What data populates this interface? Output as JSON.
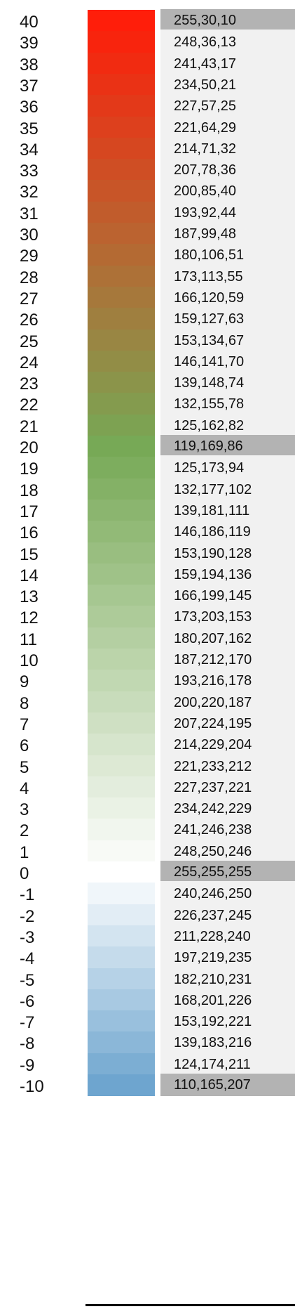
{
  "chart_data": {
    "type": "table",
    "rows": [
      {
        "label": "40",
        "rgb": "255,30,10",
        "key": true
      },
      {
        "label": "39",
        "rgb": "248,36,13",
        "key": false
      },
      {
        "label": "38",
        "rgb": "241,43,17",
        "key": false
      },
      {
        "label": "37",
        "rgb": "234,50,21",
        "key": false
      },
      {
        "label": "36",
        "rgb": "227,57,25",
        "key": false
      },
      {
        "label": "35",
        "rgb": "221,64,29",
        "key": false
      },
      {
        "label": "34",
        "rgb": "214,71,32",
        "key": false
      },
      {
        "label": "33",
        "rgb": "207,78,36",
        "key": false
      },
      {
        "label": "32",
        "rgb": "200,85,40",
        "key": false
      },
      {
        "label": "31",
        "rgb": "193,92,44",
        "key": false
      },
      {
        "label": "30",
        "rgb": "187,99,48",
        "key": false
      },
      {
        "label": "29",
        "rgb": "180,106,51",
        "key": false
      },
      {
        "label": "28",
        "rgb": "173,113,55",
        "key": false
      },
      {
        "label": "27",
        "rgb": "166,120,59",
        "key": false
      },
      {
        "label": "26",
        "rgb": "159,127,63",
        "key": false
      },
      {
        "label": "25",
        "rgb": "153,134,67",
        "key": false
      },
      {
        "label": "24",
        "rgb": "146,141,70",
        "key": false
      },
      {
        "label": "23",
        "rgb": "139,148,74",
        "key": false
      },
      {
        "label": "22",
        "rgb": "132,155,78",
        "key": false
      },
      {
        "label": "21",
        "rgb": "125,162,82",
        "key": false
      },
      {
        "label": "20",
        "rgb": "119,169,86",
        "key": true
      },
      {
        "label": "19",
        "rgb": "125,173,94",
        "key": false
      },
      {
        "label": "18",
        "rgb": "132,177,102",
        "key": false
      },
      {
        "label": "17",
        "rgb": "139,181,111",
        "key": false
      },
      {
        "label": "16",
        "rgb": "146,186,119",
        "key": false
      },
      {
        "label": "15",
        "rgb": "153,190,128",
        "key": false
      },
      {
        "label": "14",
        "rgb": "159,194,136",
        "key": false
      },
      {
        "label": "13",
        "rgb": "166,199,145",
        "key": false
      },
      {
        "label": "12",
        "rgb": "173,203,153",
        "key": false
      },
      {
        "label": "11",
        "rgb": "180,207,162",
        "key": false
      },
      {
        "label": "10",
        "rgb": "187,212,170",
        "key": false
      },
      {
        "label": "9",
        "rgb": "193,216,178",
        "key": false
      },
      {
        "label": "8",
        "rgb": "200,220,187",
        "key": false
      },
      {
        "label": "7",
        "rgb": "207,224,195",
        "key": false
      },
      {
        "label": "6",
        "rgb": "214,229,204",
        "key": false
      },
      {
        "label": "5",
        "rgb": "221,233,212",
        "key": false
      },
      {
        "label": "4",
        "rgb": "227,237,221",
        "key": false
      },
      {
        "label": "3",
        "rgb": "234,242,229",
        "key": false
      },
      {
        "label": "2",
        "rgb": "241,246,238",
        "key": false
      },
      {
        "label": "1",
        "rgb": "248,250,246",
        "key": false
      },
      {
        "label": "0",
        "rgb": "255,255,255",
        "key": true
      },
      {
        "label": "-1",
        "rgb": "240,246,250",
        "key": false
      },
      {
        "label": "-2",
        "rgb": "226,237,245",
        "key": false
      },
      {
        "label": "-3",
        "rgb": "211,228,240",
        "key": false
      },
      {
        "label": "-4",
        "rgb": "197,219,235",
        "key": false
      },
      {
        "label": "-5",
        "rgb": "182,210,231",
        "key": false
      },
      {
        "label": "-6",
        "rgb": "168,201,226",
        "key": false
      },
      {
        "label": "-7",
        "rgb": "153,192,221",
        "key": false
      },
      {
        "label": "-8",
        "rgb": "139,183,216",
        "key": false
      },
      {
        "label": "-9",
        "rgb": "124,174,211",
        "key": false
      },
      {
        "label": "-10",
        "rgb": "110,165,207",
        "key": true
      }
    ]
  }
}
